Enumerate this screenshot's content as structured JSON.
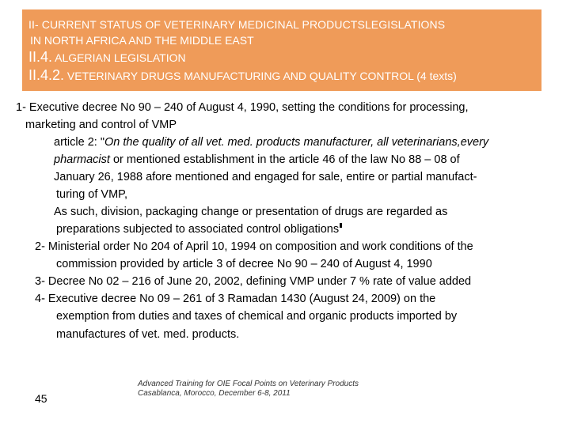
{
  "header": {
    "line1": "II- CURRENT STATUS OF VETERINARY MEDICINAL PRODUCTSLEGISLATIONS",
    "line2": "IN NORTH AFRICA AND THE MIDDLE EAST",
    "line3_num": "II.4.",
    "line3_text": " ALGERIAN LEGISLATION",
    "line4_num": "II.4.2.",
    "line4_text": " VETERINARY DRUGS MANUFACTURING AND QUALITY CONTROL (4 texts)"
  },
  "body": {
    "item1_a": "1- Executive decree No 90 – 240 of August 4, 1990, setting the conditions for processing,",
    "item1_b": "marketing and control of VMP",
    "art_a_plain": "article 2: \"",
    "art_a_italic": "On the quality of all vet. med. products manufacturer, all veterinarians,every",
    "art_b_italic": "pharmacist",
    "art_b_plain": " or mentioned establishment in the article 46 of the law No 88 – 08 of",
    "art_c": "January 26, 1988 afore mentioned and engaged for sale, entire or partial manufact-",
    "art_d": "turing of VMP,",
    "art_e": "As such, division, packaging change or presentation of drugs are regarded as",
    "art_f": "preparations subjected to associated control obligations",
    "item2_a": "2- Ministerial order No 204 of April 10, 1994 on composition and work conditions of the",
    "item2_b": "commission provided by article 3 of decree No 90 – 240 of August 4, 1990",
    "item3": "3- Decree No 02 – 216 of June 20, 2002, defining VMP under 7 % rate of value added",
    "item4_a": "4- Executive decree No 09 – 261 of 3 Ramadan 1430 (August 24, 2009) on the",
    "item4_b": "exemption from duties and taxes of chemical and organic products imported by",
    "item4_c": "manufactures of vet. med. products."
  },
  "footer": {
    "note1": "Advanced Training for OIE Focal Points on Veterinary Products",
    "note2": "Casablanca, Morocco, December 6-8, 2011",
    "page_number": "45"
  },
  "colors": {
    "header_bg": "#ef9b59",
    "header_text": "#ffffff"
  }
}
